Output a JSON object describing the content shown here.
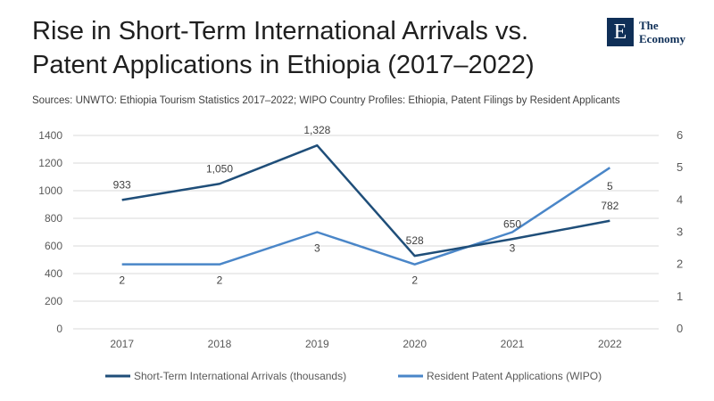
{
  "header": {
    "title_line1": "Rise in Short-Term International Arrivals vs.",
    "title_line2": "Patent Applications in Ethiopia (2017–2022)",
    "sources": "Sources: UNWTO: Ethiopia Tourism Statistics 2017–2022;  WIPO Country Profiles: Ethiopia, Patent Filings by Resident Applicants"
  },
  "logo": {
    "mark": "E",
    "line1": "The",
    "line2": "Economy"
  },
  "colors": {
    "arrivals": "#1f4e79",
    "patents": "#4a86c8",
    "grid": "#d9d9d9",
    "text": "#595959"
  },
  "chart_data": {
    "type": "line",
    "title": "Rise in Short-Term International Arrivals vs. Patent Applications in Ethiopia (2017–2022)",
    "categories": [
      "2017",
      "2018",
      "2019",
      "2020",
      "2021",
      "2022"
    ],
    "series": [
      {
        "name": "Short-Term International Arrivals (thousands)",
        "axis": "left",
        "values": [
          933,
          1050,
          1328,
          528,
          650,
          782
        ],
        "labels": [
          "933",
          "1,050",
          "1,328",
          "528",
          "650",
          "782"
        ]
      },
      {
        "name": "Resident Patent Applications (WIPO)",
        "axis": "right",
        "values": [
          2,
          2,
          3,
          2,
          3,
          5
        ],
        "labels": [
          "2",
          "2",
          "3",
          "2",
          "3",
          "5"
        ]
      }
    ],
    "y_left": {
      "min": 0,
      "max": 1400,
      "ticks": [
        "0",
        "200",
        "400",
        "600",
        "800",
        "1000",
        "1200",
        "1400"
      ]
    },
    "y_right": {
      "min": 0,
      "max": 6,
      "ticks": [
        "0",
        "1",
        "2",
        "3",
        "4",
        "5",
        "6"
      ]
    },
    "grid": true,
    "legend": "bottom-center"
  }
}
